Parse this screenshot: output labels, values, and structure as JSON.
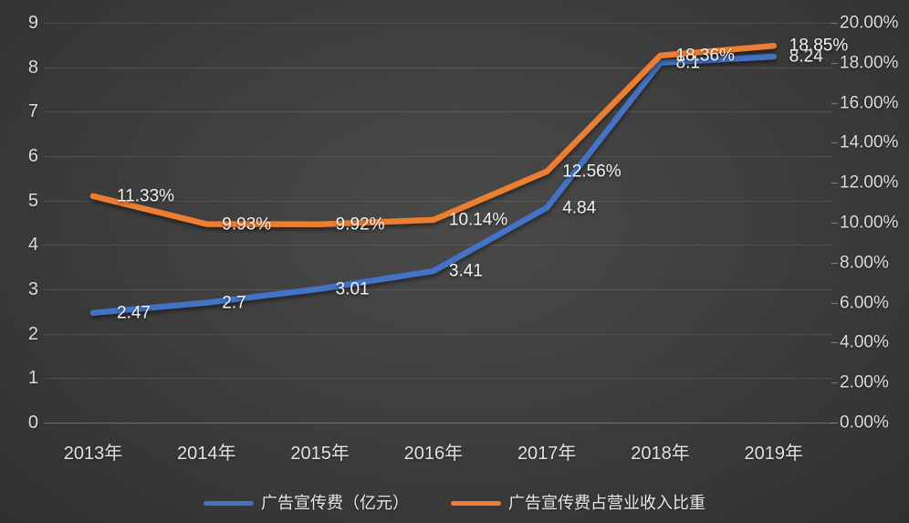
{
  "chart_data": {
    "type": "line",
    "title": "",
    "categories": [
      "2013年",
      "2014年",
      "2015年",
      "2016年",
      "2017年",
      "2018年",
      "2019年"
    ],
    "series": [
      {
        "name": "广告宣传费（亿元）",
        "axis": "left",
        "color": "#4472C4",
        "values": [
          2.47,
          2.7,
          3.01,
          3.41,
          4.84,
          8.1,
          8.24
        ],
        "labels": [
          "2.47",
          "2.7",
          "3.01",
          "3.41",
          "4.84",
          "8.1",
          "8.24"
        ]
      },
      {
        "name": "广告宣传费占营业收入比重",
        "axis": "right",
        "color": "#ED7D31",
        "values": [
          11.33,
          9.93,
          9.92,
          10.14,
          12.56,
          18.36,
          18.85
        ],
        "labels": [
          "11.33%",
          "9.93%",
          "9.92%",
          "10.14%",
          "12.56%",
          "18.36%",
          "18.85%"
        ]
      }
    ],
    "left_axis": {
      "min": 0,
      "max": 9,
      "step": 1,
      "ticks": [
        "0",
        "1",
        "2",
        "3",
        "4",
        "5",
        "6",
        "7",
        "8",
        "9"
      ]
    },
    "right_axis": {
      "min": 0,
      "max": 20,
      "step": 2,
      "ticks": [
        "0.00%",
        "2.00%",
        "4.00%",
        "6.00%",
        "8.00%",
        "10.00%",
        "12.00%",
        "14.00%",
        "16.00%",
        "18.00%",
        "20.00%"
      ]
    },
    "grid": true,
    "legend_position": "bottom"
  },
  "style": {
    "background": "#3e3e3e",
    "text_color": "#e2e2e2",
    "gridline_color": "rgba(255,255,255,0.10)"
  }
}
